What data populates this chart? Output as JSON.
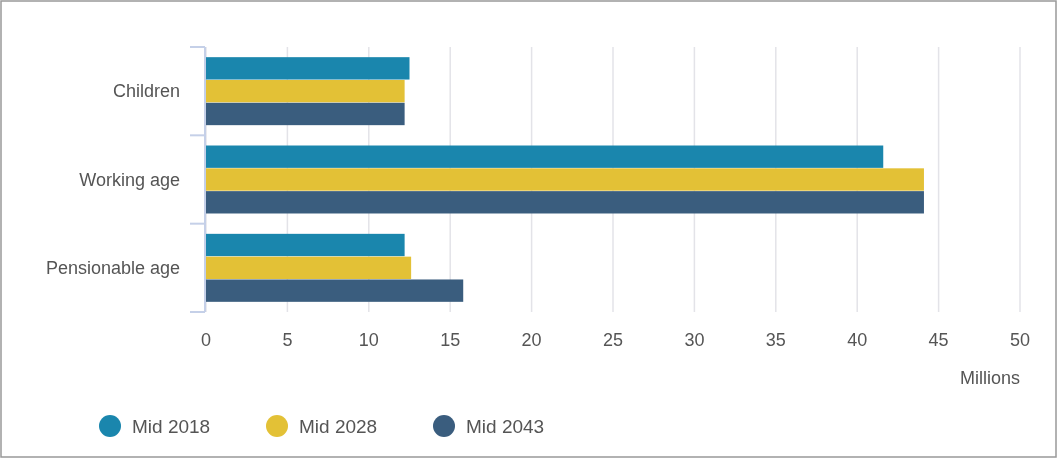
{
  "chart_data": {
    "type": "bar",
    "orientation": "horizontal",
    "xlabel": "Millions",
    "categories": [
      "Children",
      "Working age",
      "Pensionable age"
    ],
    "series": [
      {
        "name": "Mid 2018",
        "color": "#1a86ad",
        "values": [
          12.5,
          41.6,
          12.2
        ]
      },
      {
        "name": "Mid 2028",
        "color": "#e3c136",
        "values": [
          12.2,
          44.1,
          12.6
        ]
      },
      {
        "name": "Mid 2043",
        "color": "#3a5d7e",
        "values": [
          12.2,
          44.1,
          15.8
        ]
      }
    ],
    "xlim": [
      0,
      50
    ],
    "xticks": [
      0,
      5,
      10,
      15,
      20,
      25,
      30,
      35,
      40,
      45,
      50
    ],
    "grid": "x",
    "legend": "bottom left"
  }
}
